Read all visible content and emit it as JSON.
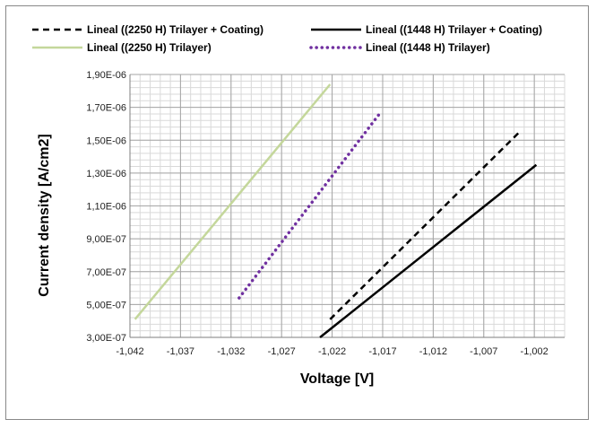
{
  "chart_data": {
    "type": "line",
    "title": "",
    "xlabel": "Voltage [V]",
    "ylabel": "Current density [A/cm2]",
    "xlim": [
      -1.042,
      -0.999
    ],
    "ylim": [
      3e-07,
      1.9e-06
    ],
    "x_ticks": [
      -1.042,
      -1.037,
      -1.032,
      -1.027,
      -1.022,
      -1.017,
      -1.012,
      -1.007,
      -1.002
    ],
    "x_tick_labels": [
      "-1,042",
      "-1,037",
      "-1,032",
      "-1,027",
      "-1,022",
      "-1,017",
      "-1,012",
      "-1,007",
      "-1,002"
    ],
    "y_ticks": [
      3e-07,
      5e-07,
      7e-07,
      9e-07,
      1.1e-06,
      1.3e-06,
      1.5e-06,
      1.7e-06,
      1.9e-06
    ],
    "y_tick_labels": [
      "3,00E-07",
      "5,00E-07",
      "7,00E-07",
      "9,00E-07",
      "1,10E-06",
      "1,30E-06",
      "1,50E-06",
      "1,70E-06",
      "1,90E-06"
    ],
    "grid": true,
    "legend_position": "top",
    "series": [
      {
        "name": "Lineal ((2250 H) Trilayer + Coating)",
        "color": "#000000",
        "dash": "dashed",
        "x": [
          -1.0222,
          -1.0033
        ],
        "y": [
          4.1e-07,
          1.56e-06
        ]
      },
      {
        "name": "Lineal ((1448 H) Trilayer + Coating)",
        "color": "#000000",
        "dash": "solid",
        "x": [
          -1.0232,
          -1.0018
        ],
        "y": [
          3e-07,
          1.35e-06
        ]
      },
      {
        "name": "Lineal ((2250 H) Trilayer)",
        "color": "#c4d79b",
        "dash": "solid",
        "x": [
          -1.0415,
          -1.0222
        ],
        "y": [
          4.1e-07,
          1.84e-06
        ]
      },
      {
        "name": "Lineal ((1448 H) Trilayer)",
        "color": "#7030a0",
        "dash": "dotted",
        "x": [
          -1.0312,
          -1.0172
        ],
        "y": [
          5.4e-07,
          1.67e-06
        ]
      }
    ]
  }
}
